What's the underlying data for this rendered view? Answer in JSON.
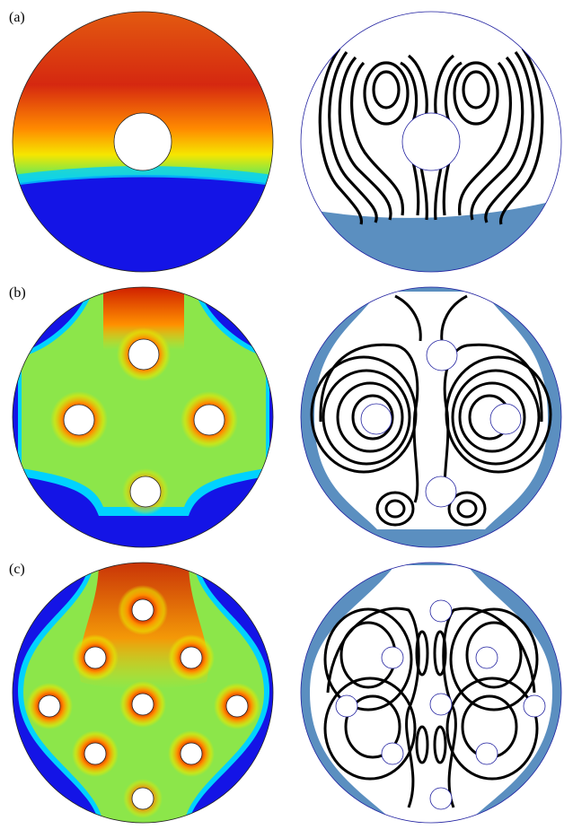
{
  "panels": [
    {
      "label": "(a)"
    },
    {
      "label": "(b)"
    },
    {
      "label": "(c)"
    }
  ],
  "colors": {
    "hot": "#cc1400",
    "warm": "#ff7a00",
    "yellow": "#f2e700",
    "green": "#86e04a",
    "cyan": "#00d8ff",
    "cold": "#1010ee",
    "liquid": "#5b8fc0",
    "streamline": "#000000",
    "outline": "#2020a0"
  }
}
